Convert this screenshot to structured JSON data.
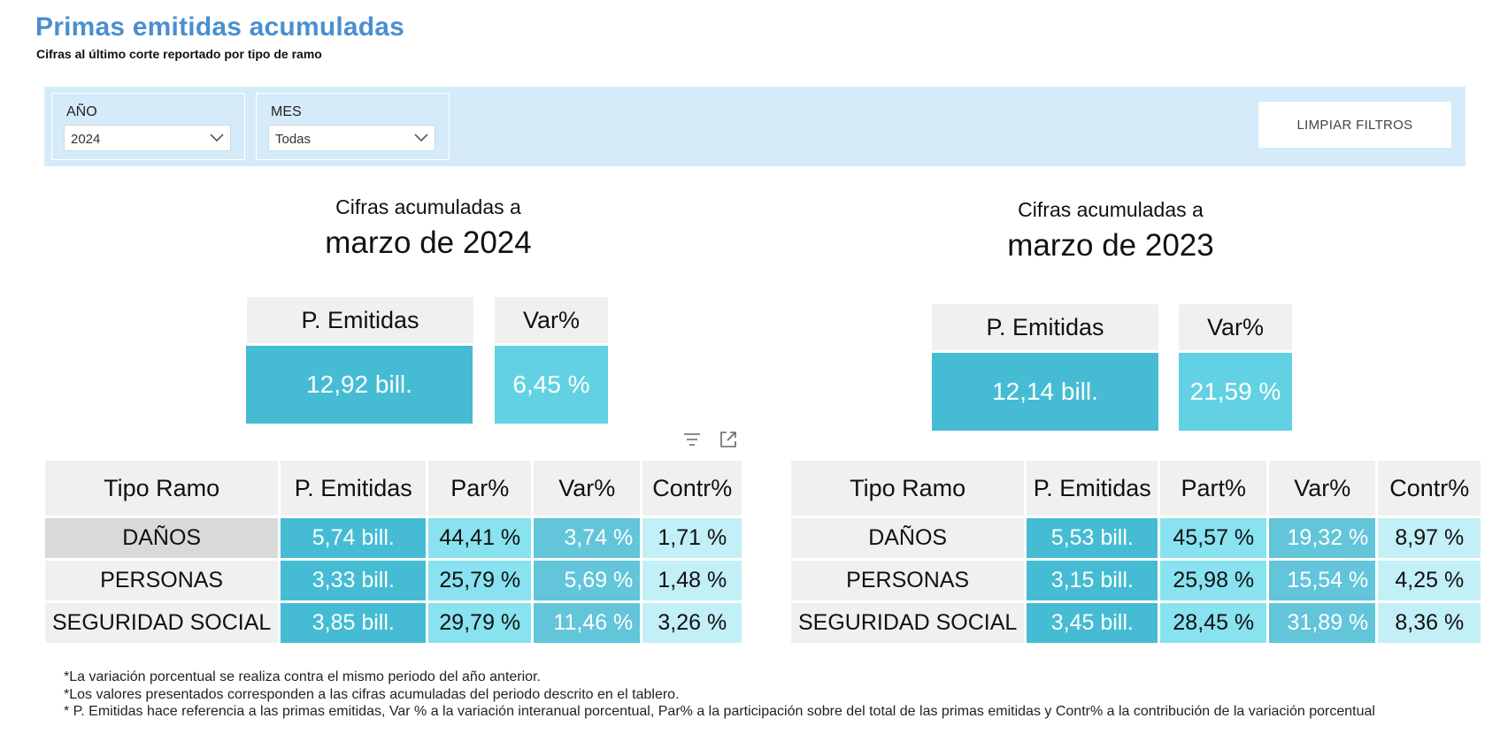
{
  "header": {
    "title": "Primas emitidas acumuladas",
    "subtitle": "Cifras al último corte reportado por tipo de ramo"
  },
  "filters": {
    "year": {
      "label": "AÑO",
      "value": "2024"
    },
    "month": {
      "label": "MES",
      "value": "Todas"
    },
    "clear_label": "LIMPIAR FILTROS"
  },
  "current": {
    "heading_small": "Cifras acumuladas a",
    "heading_big": "marzo de 2024",
    "kpi": {
      "pe_label": "P. Emitidas",
      "pe_value": "12,92 bill.",
      "var_label": "Var%",
      "var_value": "6,45 %"
    },
    "table": {
      "headers": [
        "Tipo Ramo",
        "P. Emitidas",
        "Par%",
        "Var%",
        "Contr%"
      ],
      "rows": [
        [
          "DAÑOS",
          "5,74 bill.",
          "44,41 %",
          "3,74 %",
          "1,71 %"
        ],
        [
          "PERSONAS",
          "3,33 bill.",
          "25,79 %",
          "5,69 %",
          "1,48 %"
        ],
        [
          "SEGURIDAD SOCIAL",
          "3,85 bill.",
          "29,79 %",
          "11,46 %",
          "3,26 %"
        ]
      ]
    }
  },
  "previous": {
    "heading_small": "Cifras acumuladas a",
    "heading_big": "marzo de 2023",
    "kpi": {
      "pe_label": "P. Emitidas",
      "pe_value": "12,14 bill.",
      "var_label": "Var%",
      "var_value": "21,59 %"
    },
    "table": {
      "headers": [
        "Tipo Ramo",
        "P. Emitidas",
        "Part%",
        "Var%",
        "Contr%"
      ],
      "rows": [
        [
          "DAÑOS",
          "5,53 bill.",
          "45,57 %",
          "19,32 %",
          "8,97 %"
        ],
        [
          "PERSONAS",
          "3,15 bill.",
          "25,98 %",
          "15,54 %",
          "4,25 %"
        ],
        [
          "SEGURIDAD SOCIAL",
          "3,45 bill.",
          "28,45 %",
          "31,89 %",
          "8,36 %"
        ]
      ]
    }
  },
  "visual_header_icons": [
    "filter-icon",
    "focus-mode-icon"
  ],
  "colors": {
    "title": "#4a8fcf",
    "filter_bar": "#d6ebfa",
    "pe_cell": "#45bcd3",
    "var_kpi": "#62d1e3",
    "part_cell": "#88e2ef",
    "var_cell": "#62c5da",
    "contr_cell": "#c3eff7",
    "header_cell": "#f0f0f0",
    "selected_row": "#d9d9d9"
  },
  "footnotes": [
    "*La variación porcentual se realiza contra el mismo periodo del año anterior.",
    "*Los valores presentados corresponden a las cifras acumuladas del periodo descrito en el tablero.",
    "* P. Emitidas hace referencia a las primas emitidas, Var % a la variación interanual porcentual, Par% a la participación sobre del total de las primas emitidas y Contr% a la contribución de la variación porcentual"
  ]
}
